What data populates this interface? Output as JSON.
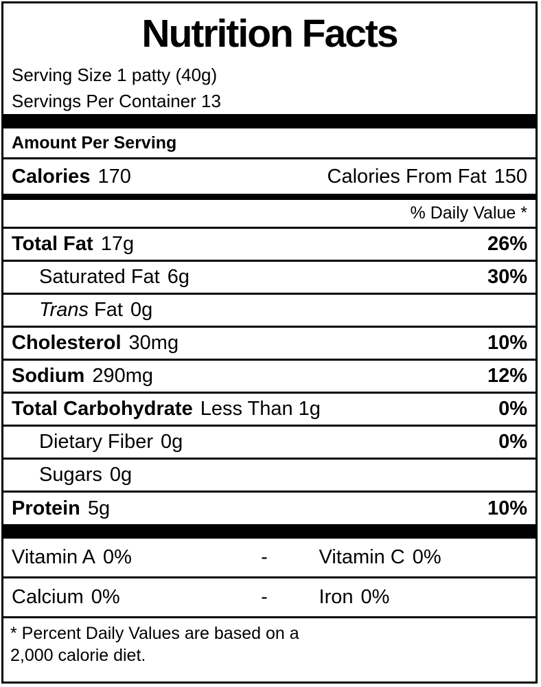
{
  "label": {
    "title": "Nutrition Facts",
    "serving_size": "Serving Size 1 patty (40g)",
    "servings_per_container": "Servings Per Container 13",
    "amount_per_serving": "Amount Per Serving",
    "calories": {
      "label": "Calories",
      "value": "170",
      "from_fat_label": "Calories From Fat",
      "from_fat_value": "150"
    },
    "daily_value_header": "% Daily Value *",
    "nutrients": [
      {
        "name": "Total Fat",
        "amount": "17g",
        "dv": "26%"
      },
      {
        "name": "Saturated Fat",
        "amount": "6g",
        "dv": "30%"
      },
      {
        "name_italic": "Trans",
        "name": "Fat",
        "amount": "0g",
        "dv": ""
      },
      {
        "name": "Cholesterol",
        "amount": "30mg",
        "dv": "10%"
      },
      {
        "name": "Sodium",
        "amount": "290mg",
        "dv": "12%"
      },
      {
        "name": "Total Carbohydrate",
        "amount": "Less Than 1g",
        "dv": "0%"
      },
      {
        "name": "Dietary Fiber",
        "amount": "0g",
        "dv": "0%"
      },
      {
        "name": "Sugars",
        "amount": "0g",
        "dv": ""
      },
      {
        "name": "Protein",
        "amount": "5g",
        "dv": "10%"
      }
    ],
    "vitamins": [
      {
        "left_name": "Vitamin A",
        "left_value": "0%",
        "separator": "-",
        "right_name": "Vitamin C",
        "right_value": "0%"
      },
      {
        "left_name": "Calcium",
        "left_value": "0%",
        "separator": "-",
        "right_name": "Iron",
        "right_value": "0%"
      }
    ],
    "footnote_line1": "* Percent Daily Values are based on a",
    "footnote_line2": "2,000 calorie diet."
  }
}
